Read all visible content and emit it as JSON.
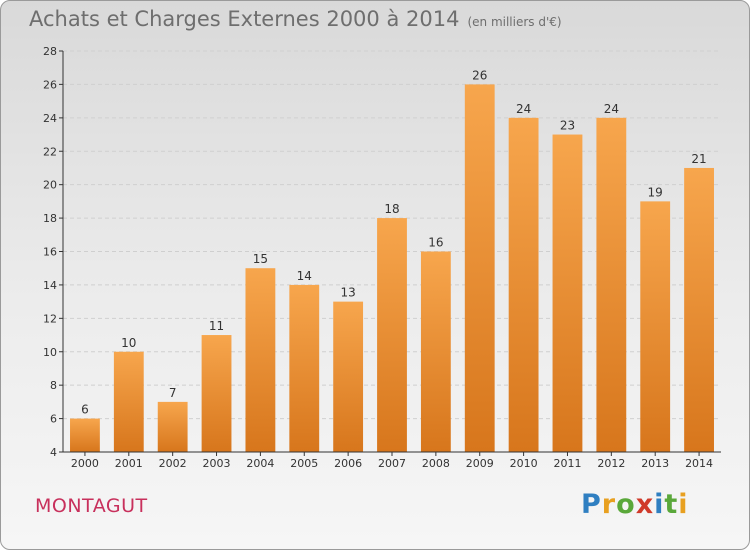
{
  "header": {
    "title": "Achats et Charges Externes 2000 à 2014",
    "subtitle": "(en milliers d'€)"
  },
  "footer": {
    "commune": "MONTAGUT",
    "logo_letters": [
      "P",
      "r",
      "o",
      "x",
      "i",
      "t",
      "i"
    ],
    "logo_colors": [
      "#2f7fc1",
      "#e8a020",
      "#5aa83a",
      "#d03a2a",
      "#2f7fc1",
      "#5aa83a",
      "#e8a020"
    ]
  },
  "colors": {
    "bar_top": "#f7a64d",
    "bar_bottom": "#d7761c",
    "grid": "#cfcfcf",
    "axis": "#333333"
  },
  "chart_data": {
    "type": "bar",
    "title": "Achats et Charges Externes 2000 à 2014",
    "subtitle": "(en milliers d'€)",
    "categories": [
      "2000",
      "2001",
      "2002",
      "2003",
      "2004",
      "2005",
      "2006",
      "2007",
      "2008",
      "2009",
      "2010",
      "2011",
      "2012",
      "2013",
      "2014"
    ],
    "values": [
      6,
      10,
      7,
      11,
      15,
      14,
      13,
      18,
      16,
      26,
      24,
      23,
      24,
      19,
      21
    ],
    "data_labels": [
      "6",
      "10",
      "7",
      "11",
      "15",
      "14",
      "13",
      "18",
      "16",
      "26",
      "24",
      "23",
      "24",
      "19",
      "21"
    ],
    "yticks": [
      "4",
      "6",
      "8",
      "10",
      "12",
      "14",
      "16",
      "18",
      "20",
      "22",
      "24",
      "26",
      "28"
    ],
    "xlabel": "",
    "ylabel": "",
    "ylim": [
      4,
      28
    ],
    "grid": true
  }
}
